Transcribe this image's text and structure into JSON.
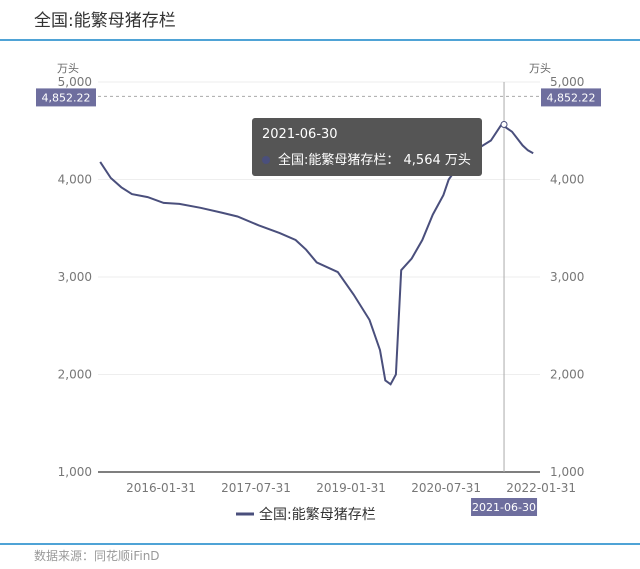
{
  "title": "全国:能繁母猪存栏",
  "footer": "数据来源：同花顺iFinD",
  "colors": {
    "line": "#4a4f7c",
    "accent": "#4fa3d6",
    "label_bg": "#6e6e9e"
  },
  "tooltip": {
    "date": "2021-06-30",
    "series": "全国:能繁母猪存栏：",
    "value": "4,564 万头"
  },
  "crosshair": {
    "x_label": "2021-06-30",
    "y_label": "4,852.22",
    "y_value": 4852.22,
    "x_value": "2021-06-30"
  },
  "chart_data": {
    "type": "line",
    "title": "全国:能繁母猪存栏",
    "ylabel_left": "万头",
    "ylabel_right": "万头",
    "ylim": [
      1000,
      5000
    ],
    "yticks": [
      "1,000",
      "2,000",
      "3,000",
      "4,000",
      "5,000"
    ],
    "xticks": [
      "2016-01-31",
      "2017-07-31",
      "2019-01-31",
      "2020-07-31",
      "2022-01-31"
    ],
    "legend": "全国:能繁母猪存栏",
    "legend_position": "bottom",
    "series": [
      {
        "name": "全国:能繁母猪存栏",
        "points": [
          [
            "2015-02",
            4180
          ],
          [
            "2015-04",
            4015
          ],
          [
            "2015-06",
            3920
          ],
          [
            "2015-08",
            3850
          ],
          [
            "2015-11",
            3820
          ],
          [
            "2016-02",
            3760
          ],
          [
            "2016-05",
            3750
          ],
          [
            "2016-09",
            3710
          ],
          [
            "2017-01",
            3660
          ],
          [
            "2017-04",
            3620
          ],
          [
            "2017-08",
            3530
          ],
          [
            "2017-12",
            3450
          ],
          [
            "2018-03",
            3380
          ],
          [
            "2018-05",
            3280
          ],
          [
            "2018-07",
            3150
          ],
          [
            "2018-11",
            3050
          ],
          [
            "2019-02",
            2820
          ],
          [
            "2019-05",
            2560
          ],
          [
            "2019-07",
            2250
          ],
          [
            "2019-08",
            1940
          ],
          [
            "2019-09",
            1900
          ],
          [
            "2019-10",
            2000
          ],
          [
            "2019-11",
            3070
          ],
          [
            "2020-01",
            3190
          ],
          [
            "2020-03",
            3380
          ],
          [
            "2020-05",
            3640
          ],
          [
            "2020-07",
            3840
          ],
          [
            "2020-08",
            4000
          ],
          [
            "2020-10",
            4150
          ],
          [
            "2021-01",
            4300
          ],
          [
            "2021-04",
            4400
          ],
          [
            "2021-06",
            4564
          ],
          [
            "2021-08",
            4490
          ],
          [
            "2021-10",
            4350
          ],
          [
            "2021-11",
            4300
          ],
          [
            "2021-12",
            4270
          ]
        ]
      }
    ]
  }
}
